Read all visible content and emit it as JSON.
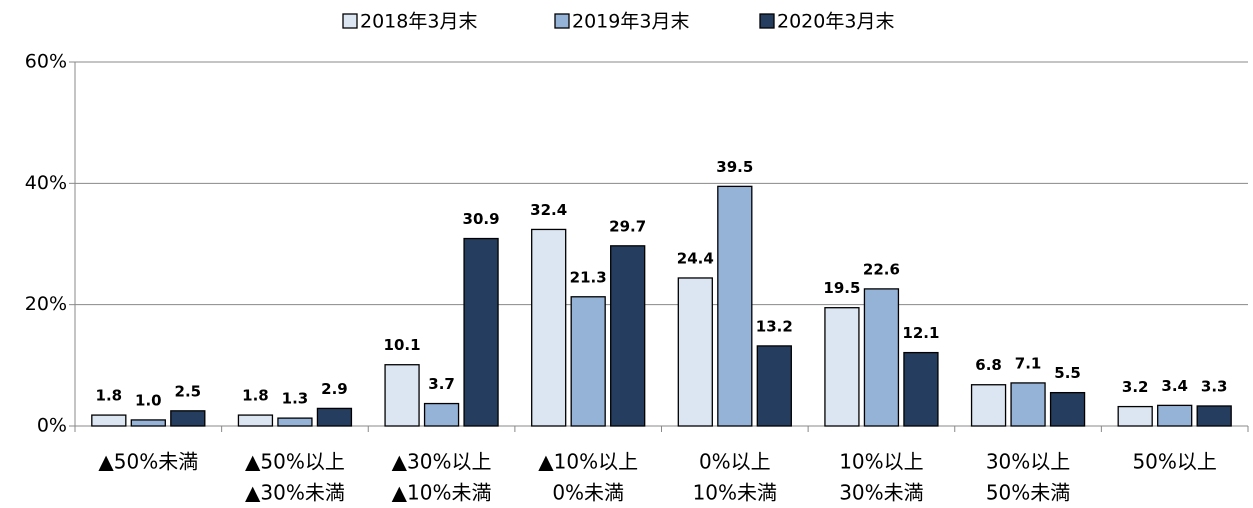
{
  "chart_data": {
    "type": "bar",
    "categories": [
      [
        "▲50%未満"
      ],
      [
        "▲50%以上",
        "▲30%未満"
      ],
      [
        "▲30%以上",
        "▲10%未満"
      ],
      [
        "▲10%以上",
        "0%未満"
      ],
      [
        "0%以上",
        "10%未満"
      ],
      [
        "10%以上",
        "30%未満"
      ],
      [
        "30%以上",
        "50%未満"
      ],
      [
        "50%以上"
      ]
    ],
    "series": [
      {
        "name": "2018年3月末",
        "color": "#dce6f2",
        "values": [
          1.8,
          1.8,
          10.1,
          32.4,
          24.4,
          19.5,
          6.8,
          3.2
        ],
        "value_labels": [
          "1.8",
          "1.8",
          "10.1",
          "32.4",
          "24.4",
          "19.5",
          "6.8",
          "3.2"
        ]
      },
      {
        "name": "2019年3月末",
        "color": "#95b3d7",
        "values": [
          1.0,
          1.3,
          3.7,
          21.3,
          39.5,
          22.6,
          7.1,
          3.4
        ],
        "value_labels": [
          "1.0",
          "1.3",
          "3.7",
          "21.3",
          "39.5",
          "22.6",
          "7.1",
          "3.4"
        ]
      },
      {
        "name": "2020年3月末",
        "color": "#253d5e",
        "values": [
          2.5,
          2.9,
          30.9,
          29.7,
          13.2,
          12.1,
          5.5,
          3.3
        ],
        "value_labels": [
          "2.5",
          "2.9",
          "30.9",
          "29.7",
          "13.2",
          "12.1",
          "5.5",
          "3.3"
        ]
      }
    ],
    "ylim": [
      0,
      60
    ],
    "yticks": [
      {
        "value": 0,
        "label": "0%"
      },
      {
        "value": 20,
        "label": "20%"
      },
      {
        "value": 40,
        "label": "40%"
      },
      {
        "value": 60,
        "label": "60%"
      }
    ],
    "grid": true,
    "legend": "top"
  }
}
